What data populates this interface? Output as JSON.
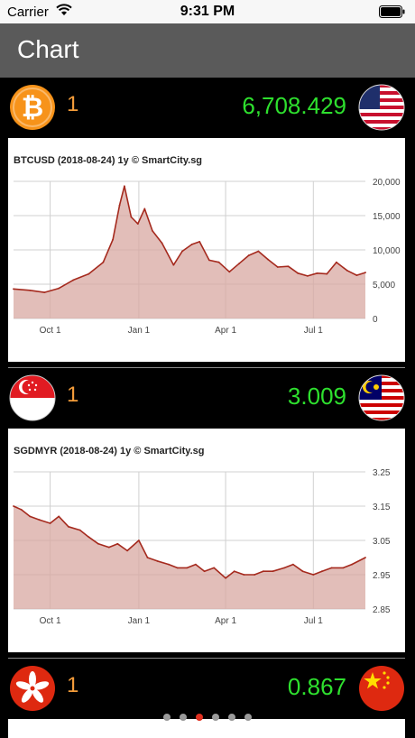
{
  "status_bar": {
    "carrier": "Carrier",
    "time": "9:31 PM"
  },
  "header": {
    "title": "Chart"
  },
  "pairs": [
    {
      "base_icon": "bitcoin-icon",
      "quote_icon": "usa-flag-icon",
      "amount": "1",
      "rate": "6,708.429"
    },
    {
      "base_icon": "singapore-flag-icon",
      "quote_icon": "malaysia-flag-icon",
      "amount": "1",
      "rate": "3.009"
    },
    {
      "base_icon": "hong-kong-flag-icon",
      "quote_icon": "china-flag-icon",
      "amount": "1",
      "rate": "0.867"
    }
  ],
  "pager": {
    "count": 6,
    "active": 3
  },
  "colors": {
    "amount": "#f39c3a",
    "rate": "#2ee02e",
    "line": "#a52a1e",
    "area": "#d8a8a2"
  },
  "chart_data": [
    {
      "type": "area",
      "title": "BTCUSD (2018-08-24) 1y  © SmartCity.sg",
      "x_ticks": [
        "Oct 1",
        "Jan 1",
        "Apr 1",
        "Jul 1"
      ],
      "y_ticks": [
        "0",
        "5,000",
        "10,000",
        "15,000",
        "20,000"
      ],
      "ylim": [
        0,
        20000
      ],
      "x": [
        "2017-08-24",
        "2017-09-10",
        "2017-09-25",
        "2017-10-10",
        "2017-10-25",
        "2017-11-10",
        "2017-11-25",
        "2017-12-05",
        "2017-12-12",
        "2017-12-17",
        "2017-12-24",
        "2017-12-31",
        "2018-01-07",
        "2018-01-15",
        "2018-01-25",
        "2018-02-06",
        "2018-02-15",
        "2018-02-25",
        "2018-03-05",
        "2018-03-15",
        "2018-03-25",
        "2018-04-05",
        "2018-04-15",
        "2018-04-25",
        "2018-05-05",
        "2018-05-15",
        "2018-05-25",
        "2018-06-05",
        "2018-06-15",
        "2018-06-25",
        "2018-07-05",
        "2018-07-15",
        "2018-07-25",
        "2018-08-05",
        "2018-08-15",
        "2018-08-24"
      ],
      "values": [
        4300,
        4100,
        3800,
        4400,
        5600,
        6500,
        8200,
        11500,
        16500,
        19300,
        14800,
        13800,
        16000,
        12800,
        11000,
        7800,
        9800,
        10800,
        11200,
        8500,
        8200,
        6800,
        8000,
        9200,
        9800,
        8600,
        7500,
        7600,
        6600,
        6200,
        6600,
        6500,
        8200,
        7000,
        6300,
        6700
      ]
    },
    {
      "type": "area",
      "title": "SGDMYR (2018-08-24) 1y  © SmartCity.sg",
      "x_ticks": [
        "Oct 1",
        "Jan 1",
        "Apr 1",
        "Jul 1"
      ],
      "y_ticks": [
        "2.85",
        "2.95",
        "3.05",
        "3.15",
        "3.25"
      ],
      "ylim": [
        2.85,
        3.25
      ],
      "x": [
        "2017-08-24",
        "2017-09-01",
        "2017-09-10",
        "2017-09-20",
        "2017-10-01",
        "2017-10-10",
        "2017-10-20",
        "2017-11-01",
        "2017-11-10",
        "2017-11-20",
        "2017-12-01",
        "2017-12-10",
        "2017-12-20",
        "2018-01-01",
        "2018-01-10",
        "2018-01-20",
        "2018-02-01",
        "2018-02-10",
        "2018-02-20",
        "2018-03-01",
        "2018-03-10",
        "2018-03-20",
        "2018-04-01",
        "2018-04-10",
        "2018-04-20",
        "2018-05-01",
        "2018-05-10",
        "2018-05-20",
        "2018-06-01",
        "2018-06-10",
        "2018-06-20",
        "2018-07-01",
        "2018-07-10",
        "2018-07-20",
        "2018-08-01",
        "2018-08-10",
        "2018-08-24"
      ],
      "values": [
        3.15,
        3.14,
        3.12,
        3.11,
        3.1,
        3.12,
        3.09,
        3.08,
        3.06,
        3.04,
        3.03,
        3.04,
        3.02,
        3.05,
        3.0,
        2.99,
        2.98,
        2.97,
        2.97,
        2.98,
        2.96,
        2.97,
        2.94,
        2.96,
        2.95,
        2.95,
        2.96,
        2.96,
        2.97,
        2.98,
        2.96,
        2.95,
        2.96,
        2.97,
        2.97,
        2.98,
        3.0
      ]
    }
  ]
}
